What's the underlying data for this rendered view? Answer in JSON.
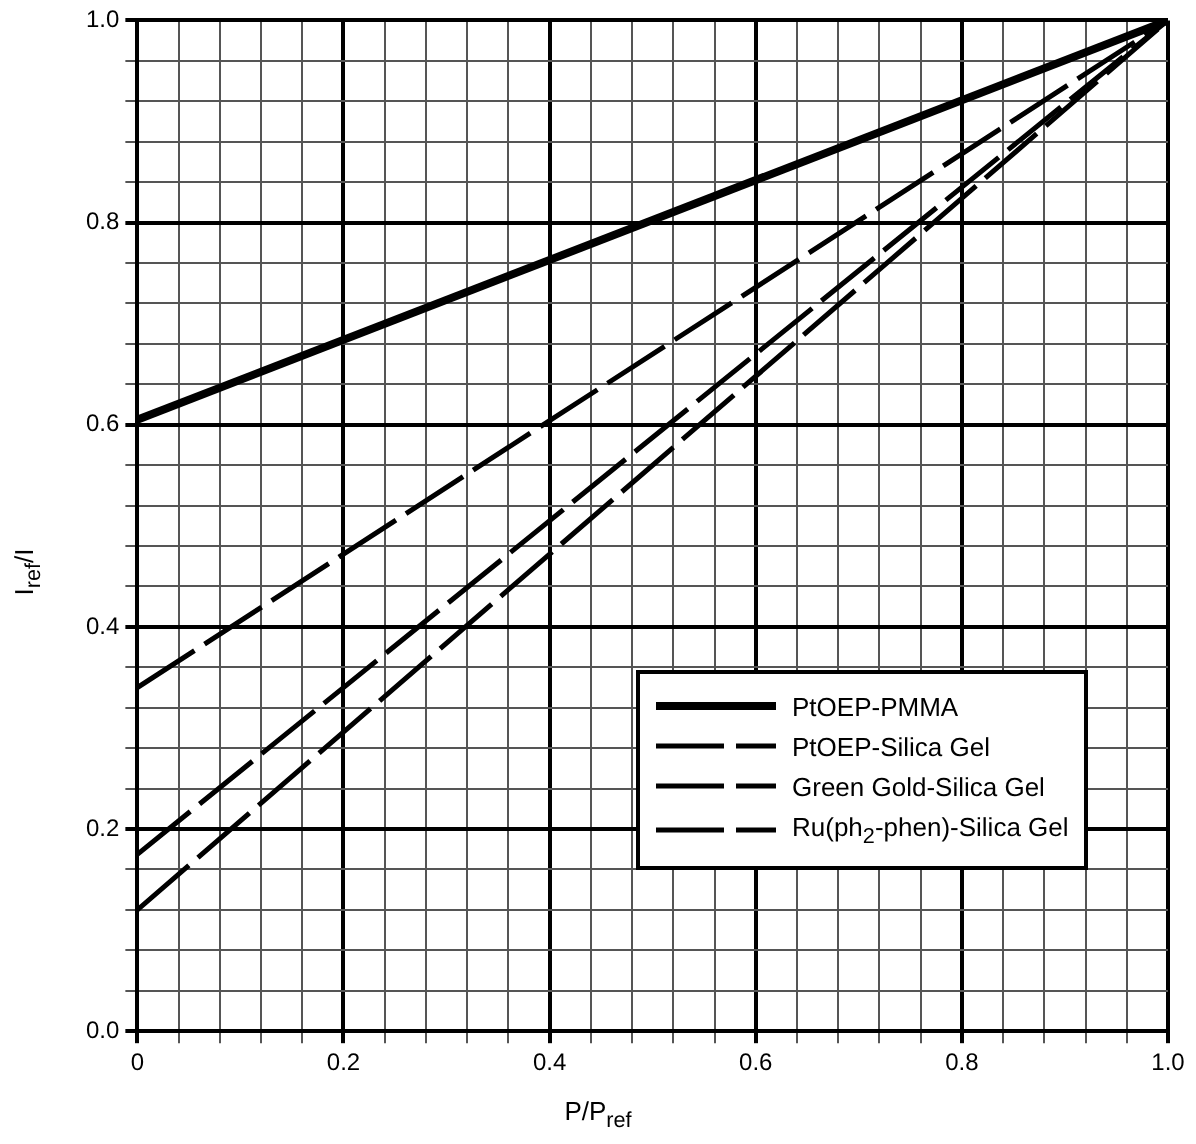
{
  "chart_data": {
    "type": "line",
    "xlabel": "P/P$_{ref}$",
    "ylabel": "I$_{ref}$/I",
    "x": [
      0,
      1
    ],
    "xlim": [
      0,
      1
    ],
    "ylim": [
      0,
      1
    ],
    "xticks": [
      0,
      {
        "value": 0.04,
        "label": null
      },
      {
        "value": 0.08,
        "label": null
      },
      {
        "value": 0.12,
        "label": null
      },
      {
        "value": 0.16,
        "label": null
      },
      {
        "value": 0.2,
        "label": "0.2"
      },
      {
        "value": 0.24,
        "label": null
      },
      {
        "value": 0.28,
        "label": null
      },
      {
        "value": 0.32,
        "label": null
      },
      {
        "value": 0.36,
        "label": null
      },
      {
        "value": 0.4,
        "label": "0.4"
      },
      {
        "value": 0.44,
        "label": null
      },
      {
        "value": 0.48,
        "label": null
      },
      {
        "value": 0.52,
        "label": null
      },
      {
        "value": 0.56,
        "label": null
      },
      {
        "value": 0.6,
        "label": "0.6"
      },
      {
        "value": 0.64,
        "label": null
      },
      {
        "value": 0.68,
        "label": null
      },
      {
        "value": 0.72,
        "label": null
      },
      {
        "value": 0.76,
        "label": null
      },
      {
        "value": 0.8,
        "label": "0.8"
      },
      {
        "value": 0.84,
        "label": null
      },
      {
        "value": 0.88,
        "label": null
      },
      {
        "value": 0.92,
        "label": null
      },
      {
        "value": 0.96,
        "label": null
      },
      {
        "value": 1,
        "label": "1.0"
      }
    ],
    "yticks": [
      {
        "value": 0,
        "label": "0.0"
      },
      {
        "value": 0.04,
        "label": null
      },
      {
        "value": 0.08,
        "label": null
      },
      {
        "value": 0.12,
        "label": null
      },
      {
        "value": 0.16,
        "label": null
      },
      {
        "value": 0.2,
        "label": "0.2"
      },
      {
        "value": 0.24,
        "label": null
      },
      {
        "value": 0.28,
        "label": null
      },
      {
        "value": 0.32,
        "label": null
      },
      {
        "value": 0.36,
        "label": null
      },
      {
        "value": 0.4,
        "label": "0.4"
      },
      {
        "value": 0.44,
        "label": null
      },
      {
        "value": 0.48,
        "label": null
      },
      {
        "value": 0.52,
        "label": null
      },
      {
        "value": 0.56,
        "label": null
      },
      {
        "value": 0.6,
        "label": "0.6"
      },
      {
        "value": 0.64,
        "label": null
      },
      {
        "value": 0.68,
        "label": null
      },
      {
        "value": 0.72,
        "label": null
      },
      {
        "value": 0.76,
        "label": null
      },
      {
        "value": 0.8,
        "label": "0.8"
      },
      {
        "value": 0.84,
        "label": null
      },
      {
        "value": 0.88,
        "label": null
      },
      {
        "value": 0.92,
        "label": null
      },
      {
        "value": 0.96,
        "label": null
      },
      {
        "value": 1,
        "label": "1.0"
      }
    ],
    "grid": true,
    "legend": "bottom right",
    "marker": "none",
    "series": [
      {
        "name": "PtOEP-PMMA",
        "color": "#000000",
        "values": [
          0.605,
          1
        ],
        "line_style": "solid"
      },
      {
        "name": "PtOEP-Silica Gel",
        "color": "#000000",
        "values": [
          0.34,
          1
        ],
        "line_style": "dashed"
      },
      {
        "name": "Green Gold-Silica Gel",
        "color": "#000000",
        "values": [
          0.175,
          1
        ],
        "line_style": "dashed"
      },
      {
        "name": "Ru(ph$_{2}$-phen)-Silica Gel",
        "color": "#000000",
        "values": [
          0.12,
          1
        ],
        "line_style": "dashed"
      }
    ]
  }
}
